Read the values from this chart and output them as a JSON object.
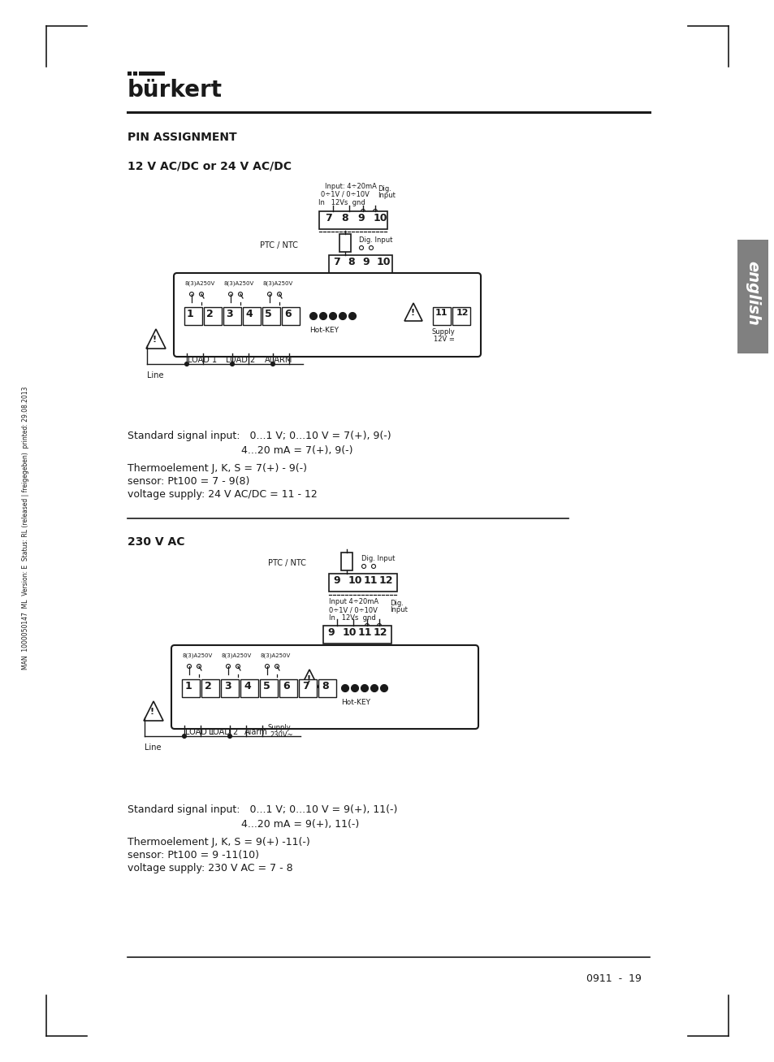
{
  "bg_color": "#ffffff",
  "text_color": "#1a1a1a",
  "page_number": "0911  -  19",
  "title_pin": "PIN ASSIGNMENT",
  "subtitle1": "12 V AC/DC or 24 V AC/DC",
  "subtitle2": "230 V AC",
  "desc1_line1": "Standard signal input:   0...1 V; 0...10 V = 7(+), 9(-)",
  "desc1_line2": "                                   4...20 mA = 7(+), 9(-)",
  "desc1_line3": "Thermoelement J, K, S = 7(+) - 9(-)",
  "desc1_line4": "sensor: Pt100 = 7 - 9(8)",
  "desc1_line5": "voltage supply: 24 V AC/DC = 11 - 12",
  "desc2_line1": "Standard signal input:   0...1 V; 0...10 V = 9(+), 11(-)",
  "desc2_line2": "                                   4...20 mA = 9(+), 11(-)",
  "desc2_line3": "Thermoelement J, K, S = 9(+) -11(-)",
  "desc2_line4": "sensor: Pt100 = 9 -11(10)",
  "desc2_line5": "voltage supply: 230 V AC = 7 - 8",
  "sidebar_text": "english",
  "margin_text": "MAN  1000050147  ML  Version: E  Status: RL (released | freigegeben)  printed: 29.08.2013"
}
